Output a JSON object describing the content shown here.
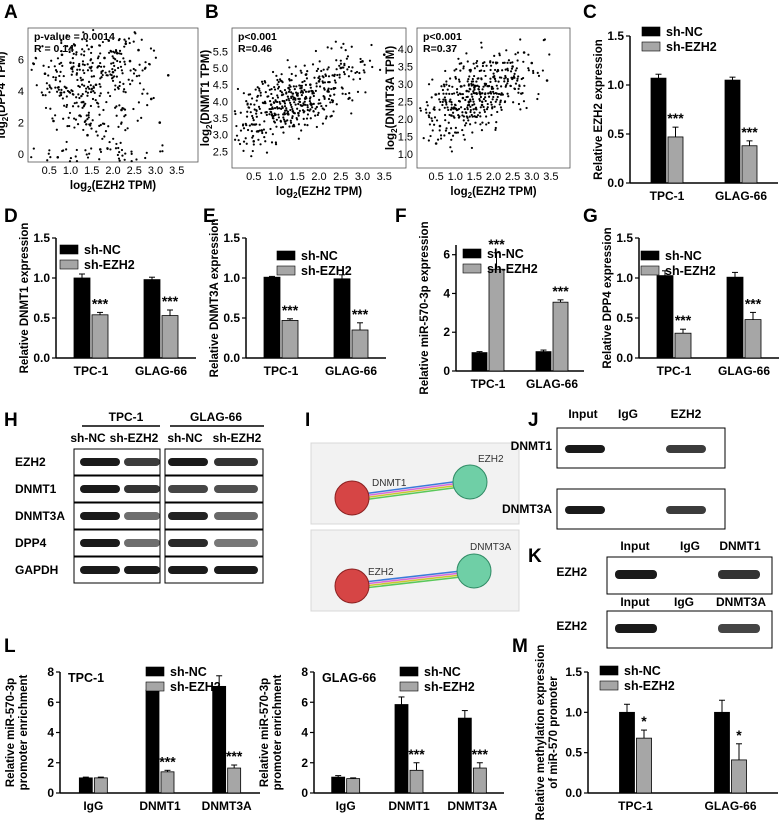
{
  "panel_labels": {
    "A": "A",
    "B": "B",
    "C": "C",
    "D": "D",
    "E": "E",
    "F": "F",
    "G": "G",
    "H": "H",
    "I": "I",
    "J": "J",
    "K": "K",
    "L": "L",
    "M": "M"
  },
  "colors": {
    "sh_nc": "#000000",
    "sh_ezh2": "#a6a6a6",
    "net_node1": "#cc3333",
    "net_node2": "#5fbf9a",
    "blot_band": "#1a1a1a"
  },
  "chart_data": [
    {
      "id": "A",
      "type": "scatter",
      "stat_lines": [
        "p-value = 0.0014",
        "R = 0.14"
      ],
      "xlabel_parts": {
        "pre": "log",
        "sub": "2",
        "post": "(EZH2 TPM)"
      },
      "ylabel_parts": {
        "pre": "log",
        "sub": "2",
        "post": "(DPP4 TPM)"
      },
      "xticks": [
        "0.5",
        "1.0",
        "1.5",
        "2.0",
        "2.5",
        "3.0",
        "3.5"
      ],
      "xlim": [
        0,
        4
      ],
      "yticks": [
        "0",
        "2",
        "4",
        "6"
      ],
      "ylim": [
        -0.5,
        8
      ],
      "points": [
        [
          1.8,
          6.1
        ],
        [
          1.2,
          5.6
        ],
        [
          2.1,
          6.4
        ],
        [
          0.9,
          4.2
        ],
        [
          1.5,
          6.8
        ],
        [
          2.4,
          5.9
        ],
        [
          0.6,
          2.1
        ],
        [
          1.7,
          0.3
        ],
        [
          2.9,
          3.5
        ],
        [
          1.1,
          6.9
        ],
        [
          2.2,
          2.8
        ],
        [
          0.4,
          5.1
        ],
        [
          1.9,
          7.2
        ],
        [
          3.3,
          5.0
        ],
        [
          1.4,
          1.2
        ],
        [
          2.6,
          6.6
        ],
        [
          0.8,
          6.3
        ],
        [
          1.6,
          4.4
        ],
        [
          2.0,
          5.2
        ],
        [
          3.1,
          2.0
        ],
        [
          1.3,
          3.3
        ],
        [
          0.7,
          -0.2
        ],
        [
          2.3,
          7.0
        ],
        [
          1.0,
          5.8
        ]
      ],
      "point_note": "representative sample of scatter cloud"
    },
    {
      "id": "B1",
      "type": "scatter",
      "stat_lines": [
        "p<0.001",
        "R=0.46"
      ],
      "xlabel_parts": {
        "pre": "log",
        "sub": "2",
        "post": "(EZH2 TPM)"
      },
      "ylabel_parts": {
        "pre": "log",
        "sub": "2",
        "post": "(DNMT1 TPM)"
      },
      "xticks": [
        "0.5",
        "1.0",
        "1.5",
        "2.0",
        "2.5",
        "3.0",
        "3.5"
      ],
      "xlim": [
        0,
        4
      ],
      "yticks": [
        "2.5",
        "3.0",
        "3.5",
        "4.0",
        "4.5",
        "5.0",
        "5.5"
      ],
      "ylim": [
        2,
        6.2
      ],
      "points": [
        [
          1.0,
          3.6
        ],
        [
          1.5,
          4.2
        ],
        [
          2.0,
          4.6
        ],
        [
          0.6,
          3.1
        ],
        [
          2.5,
          5.0
        ],
        [
          1.2,
          4.0
        ],
        [
          1.8,
          4.5
        ],
        [
          3.0,
          5.2
        ],
        [
          0.9,
          3.9
        ],
        [
          2.2,
          4.3
        ],
        [
          1.4,
          3.7
        ],
        [
          1.7,
          4.8
        ],
        [
          2.7,
          4.1
        ],
        [
          0.5,
          2.8
        ],
        [
          3.5,
          5.4
        ],
        [
          1.3,
          4.4
        ]
      ]
    },
    {
      "id": "B2",
      "type": "scatter",
      "stat_lines": [
        "p<0.001",
        "R=0.37"
      ],
      "xlabel_parts": {
        "pre": "log",
        "sub": "2",
        "post": "(EZH2 TPM)"
      },
      "ylabel_parts": {
        "pre": "log",
        "sub": "2",
        "post": "(DNMT3A TPM)"
      },
      "xticks": [
        "0.5",
        "1.0",
        "1.5",
        "2.0",
        "2.5",
        "3.0",
        "3.5"
      ],
      "xlim": [
        0,
        4
      ],
      "yticks": [
        "1.0",
        "1.5",
        "2.0",
        "2.5",
        "3.0",
        "3.5",
        "4.0"
      ],
      "ylim": [
        0.6,
        4.6
      ],
      "points": [
        [
          1.0,
          2.3
        ],
        [
          1.5,
          2.9
        ],
        [
          2.0,
          3.2
        ],
        [
          0.6,
          1.8
        ],
        [
          2.5,
          3.5
        ],
        [
          1.2,
          2.6
        ],
        [
          1.8,
          3.0
        ],
        [
          3.0,
          3.6
        ],
        [
          0.9,
          2.1
        ],
        [
          2.2,
          2.7
        ],
        [
          1.4,
          3.4
        ],
        [
          1.7,
          2.4
        ],
        [
          2.8,
          3.9
        ],
        [
          0.5,
          1.3
        ],
        [
          3.4,
          3.1
        ],
        [
          1.3,
          2.8
        ]
      ]
    },
    {
      "id": "C",
      "type": "bar",
      "ylabel": "Relative EZH2 expression",
      "categories": [
        "TPC-1",
        "GLAG-66"
      ],
      "yticks": [
        "0.0",
        "0.5",
        "1.0",
        "1.5"
      ],
      "ylim": [
        0,
        1.5
      ],
      "series": [
        {
          "name": "sh-NC",
          "values": [
            1.07,
            1.05
          ],
          "errors": [
            0.04,
            0.03
          ]
        },
        {
          "name": "sh-EZH2",
          "values": [
            0.47,
            0.38
          ],
          "errors": [
            0.1,
            0.05
          ]
        }
      ],
      "significance": [
        "***",
        "***"
      ]
    },
    {
      "id": "D",
      "type": "bar",
      "ylabel": "Relative DNMT1 expression",
      "categories": [
        "TPC-1",
        "GLAG-66"
      ],
      "yticks": [
        "0.0",
        "0.5",
        "1.0",
        "1.5"
      ],
      "ylim": [
        0,
        1.5
      ],
      "series": [
        {
          "name": "sh-NC",
          "values": [
            1.0,
            0.98
          ],
          "errors": [
            0.05,
            0.03
          ]
        },
        {
          "name": "sh-EZH2",
          "values": [
            0.54,
            0.53
          ],
          "errors": [
            0.03,
            0.07
          ]
        }
      ],
      "significance": [
        "***",
        "***"
      ]
    },
    {
      "id": "E",
      "type": "bar",
      "ylabel": "Relative DNMT3A expression",
      "categories": [
        "TPC-1",
        "GLAG-66"
      ],
      "yticks": [
        "0.0",
        "0.5",
        "1.0",
        "1.5"
      ],
      "ylim": [
        0,
        1.5
      ],
      "series": [
        {
          "name": "sh-NC",
          "values": [
            1.01,
            0.99
          ],
          "errors": [
            0.01,
            0.05
          ]
        },
        {
          "name": "sh-EZH2",
          "values": [
            0.47,
            0.35
          ],
          "errors": [
            0.02,
            0.09
          ]
        }
      ],
      "significance": [
        "***",
        "***"
      ]
    },
    {
      "id": "F",
      "type": "bar",
      "ylabel": "Relative miR-570-3p expression",
      "categories": [
        "TPC-1",
        "GLAG-66"
      ],
      "yticks": [
        "0",
        "2",
        "4",
        "6"
      ],
      "ylim": [
        0,
        6.5
      ],
      "series": [
        {
          "name": "sh-NC",
          "values": [
            0.95,
            1.0
          ],
          "errors": [
            0.05,
            0.08
          ]
        },
        {
          "name": "sh-EZH2",
          "values": [
            5.25,
            3.55
          ],
          "errors": [
            0.85,
            0.12
          ]
        }
      ],
      "significance": [
        "***",
        "***"
      ]
    },
    {
      "id": "G",
      "type": "bar",
      "ylabel": "Relative DPP4 expression",
      "categories": [
        "TPC-1",
        "GLAG-66"
      ],
      "yticks": [
        "0.0",
        "0.5",
        "1.0",
        "1.5"
      ],
      "ylim": [
        0,
        1.5
      ],
      "series": [
        {
          "name": "sh-NC",
          "values": [
            1.03,
            1.01
          ],
          "errors": [
            0.06,
            0.06
          ]
        },
        {
          "name": "sh-EZH2",
          "values": [
            0.31,
            0.48
          ],
          "errors": [
            0.05,
            0.09
          ]
        }
      ],
      "significance": [
        "***",
        "***"
      ]
    },
    {
      "id": "L1",
      "type": "bar",
      "title": "TPC-1",
      "ylabel_lines": [
        "Relative miR-570-3p",
        "promoter enrichment"
      ],
      "categories": [
        "IgG",
        "DNMT1",
        "DNMT3A"
      ],
      "yticks": [
        "0",
        "2",
        "4",
        "6",
        "8"
      ],
      "ylim": [
        0,
        8
      ],
      "series": [
        {
          "name": "sh-NC",
          "values": [
            1.0,
            6.8,
            7.05
          ],
          "errors": [
            0.05,
            0.5,
            0.7
          ]
        },
        {
          "name": "sh-EZH2",
          "values": [
            1.0,
            1.4,
            1.65
          ],
          "errors": [
            0.05,
            0.1,
            0.2
          ]
        }
      ],
      "significance": [
        "",
        "***",
        "***"
      ]
    },
    {
      "id": "L2",
      "type": "bar",
      "title": "GLAG-66",
      "ylabel_lines": [
        "Relative miR-570-3p",
        "promoter enrichment"
      ],
      "categories": [
        "IgG",
        "DNMT1",
        "DNMT3A"
      ],
      "yticks": [
        "0",
        "2",
        "4",
        "6",
        "8"
      ],
      "ylim": [
        0,
        8
      ],
      "series": [
        {
          "name": "sh-NC",
          "values": [
            1.05,
            5.85,
            4.95
          ],
          "errors": [
            0.1,
            0.5,
            0.5
          ]
        },
        {
          "name": "sh-EZH2",
          "values": [
            0.95,
            1.5,
            1.65
          ],
          "errors": [
            0.05,
            0.5,
            0.35
          ]
        }
      ],
      "significance": [
        "",
        "***",
        "***"
      ]
    },
    {
      "id": "M",
      "type": "bar",
      "ylabel_lines": [
        "Relative methylation expression",
        "of miR-570 promoter"
      ],
      "categories": [
        "TPC-1",
        "GLAG-66"
      ],
      "yticks": [
        "0.0",
        "0.5",
        "1.0",
        "1.5"
      ],
      "ylim": [
        0,
        1.5
      ],
      "series": [
        {
          "name": "sh-NC",
          "values": [
            1.0,
            1.0
          ],
          "errors": [
            0.1,
            0.15
          ]
        },
        {
          "name": "sh-EZH2",
          "values": [
            0.68,
            0.41
          ],
          "errors": [
            0.1,
            0.2
          ]
        }
      ],
      "significance": [
        "*",
        "*"
      ]
    }
  ],
  "blot_H": {
    "group1": "TPC-1",
    "group2": "GLAG-66",
    "lanes": [
      "sh-NC",
      "sh-EZH2",
      "sh-NC",
      "sh-EZH2"
    ],
    "rows": [
      "EZH2",
      "DNMT1",
      "DNMT3A",
      "DPP4",
      "GAPDH"
    ],
    "band_intensity": [
      [
        1,
        0.8,
        1,
        0.85
      ],
      [
        1,
        0.85,
        0.75,
        0.7
      ],
      [
        1,
        0.5,
        0.95,
        0.55
      ],
      [
        1,
        0.5,
        0.9,
        0.45
      ],
      [
        1,
        1,
        1,
        1
      ]
    ]
  },
  "network_I": {
    "top": {
      "node1": "DNMT1",
      "node2": "EZH2"
    },
    "bottom": {
      "node1": "EZH2",
      "node2": "DNMT3A"
    }
  },
  "blot_J": {
    "columns": [
      "Input",
      "IgG",
      "EZH2"
    ],
    "rows": [
      "DNMT1",
      "DNMT3A"
    ],
    "band_intensity": [
      [
        1,
        0,
        0.8
      ],
      [
        1,
        0,
        0.8
      ]
    ]
  },
  "blot_K1": {
    "columns": [
      "Input",
      "IgG",
      "DNMT1"
    ],
    "row": "EZH2",
    "band_intensity": [
      1,
      0,
      0.85
    ]
  },
  "blot_K2": {
    "columns": [
      "Input",
      "IgG",
      "DNMT3A"
    ],
    "row": "EZH2",
    "band_intensity": [
      1,
      0,
      0.75
    ]
  }
}
